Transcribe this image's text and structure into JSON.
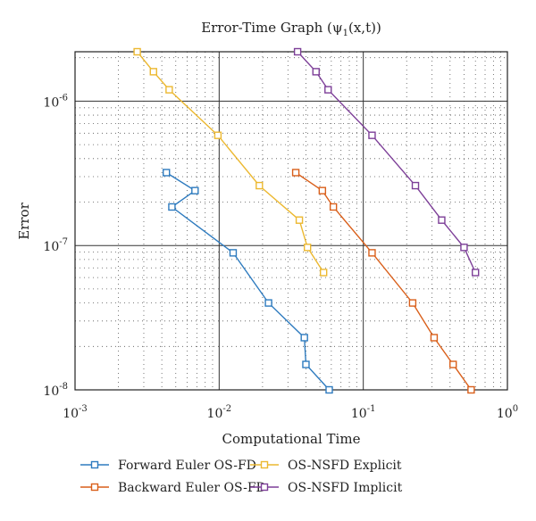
{
  "chart_data": {
    "type": "line",
    "title": "Error-Time Graph (ψ",
    "title_sub": "1",
    "title_suffix": "(x,t))",
    "xlabel": "Computational Time",
    "ylabel": "Error",
    "xscale": "log",
    "yscale": "log",
    "xlim": [
      0.001,
      1
    ],
    "ylim": [
      1e-08,
      2.2e-06
    ],
    "grid": true,
    "legend_position": "bottom",
    "x_ticks": [
      {
        "value": 0.001,
        "base": "10",
        "exp": "-3"
      },
      {
        "value": 0.01,
        "base": "10",
        "exp": "-2"
      },
      {
        "value": 0.1,
        "base": "10",
        "exp": "-1"
      },
      {
        "value": 1,
        "base": "10",
        "exp": "0"
      }
    ],
    "y_ticks": [
      {
        "value": 1e-08,
        "base": "10",
        "exp": "-8"
      },
      {
        "value": 1e-07,
        "base": "10",
        "exp": "-7"
      },
      {
        "value": 1e-06,
        "base": "10",
        "exp": "-6"
      }
    ],
    "series": [
      {
        "name": "Forward Euler OS-FD",
        "color": "#2e7bbf",
        "x": [
          0.0043,
          0.0068,
          0.0047,
          0.0125,
          0.022,
          0.039,
          0.04,
          0.058
        ],
        "y": [
          3.2e-07,
          2.4e-07,
          1.85e-07,
          8.9e-08,
          4e-08,
          2.3e-08,
          1.5e-08,
          1e-08
        ]
      },
      {
        "name": "Backward Euler OS-FD",
        "color": "#d95f1a",
        "x": [
          0.034,
          0.052,
          0.062,
          0.115,
          0.22,
          0.31,
          0.42,
          0.56
        ],
        "y": [
          3.2e-07,
          2.4e-07,
          1.85e-07,
          8.9e-08,
          4e-08,
          2.3e-08,
          1.5e-08,
          1e-08
        ]
      },
      {
        "name": "OS-NSFD Explicit",
        "color": "#ecb830",
        "x": [
          0.0027,
          0.0035,
          0.0045,
          0.0098,
          0.019,
          0.036,
          0.041,
          0.053
        ],
        "y": [
          2.2e-06,
          1.6e-06,
          1.2e-06,
          5.8e-07,
          2.6e-07,
          1.5e-07,
          9.7e-08,
          6.5e-08
        ]
      },
      {
        "name": "OS-NSFD Implicit",
        "color": "#7d3f98",
        "x": [
          0.035,
          0.047,
          0.057,
          0.115,
          0.23,
          0.35,
          0.5,
          0.6
        ],
        "y": [
          2.2e-06,
          1.6e-06,
          1.2e-06,
          5.8e-07,
          2.6e-07,
          1.5e-07,
          9.7e-08,
          6.5e-08
        ]
      }
    ]
  }
}
